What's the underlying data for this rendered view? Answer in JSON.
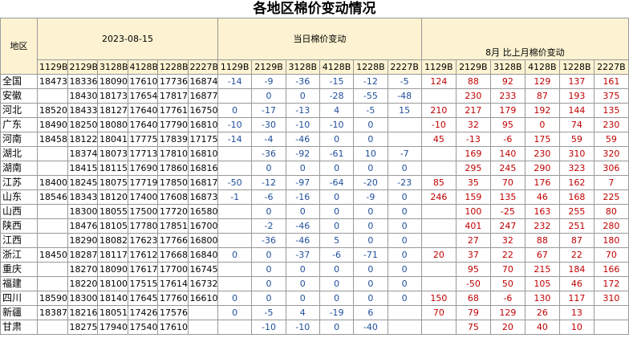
{
  "title": "各地区棉价变动情况",
  "header": {
    "region": "地区",
    "date": "2023-08-15",
    "daily": "当日棉价变动",
    "monthly": "8月 比上月棉价变动",
    "codes": [
      "1129B",
      "2129B",
      "3128B",
      "4128B",
      "1228B",
      "2227B"
    ]
  },
  "rows": [
    [
      "全国",
      [
        18473,
        18336,
        18090,
        17610,
        17736,
        16874
      ],
      [
        -14,
        -9,
        -36,
        -15,
        -12,
        -5
      ],
      [
        124,
        88,
        92,
        129,
        137,
        161
      ]
    ],
    [
      "安徽",
      [
        null,
        18430,
        18173,
        17654,
        17817,
        16877
      ],
      [
        null,
        0,
        0,
        -28,
        -55,
        -48
      ],
      [
        null,
        230,
        233,
        87,
        193,
        375
      ]
    ],
    [
      "河北",
      [
        18520,
        18433,
        18127,
        17640,
        17761,
        16750
      ],
      [
        0,
        -17,
        -13,
        4,
        -5,
        15
      ],
      [
        210,
        217,
        179,
        192,
        144,
        135
      ]
    ],
    [
      "广东",
      [
        18490,
        18250,
        18080,
        17640,
        17790,
        16810
      ],
      [
        -10,
        -30,
        -10,
        -10,
        0,
        null
      ],
      [
        -10,
        32,
        95,
        0,
        74,
        230
      ]
    ],
    [
      "河南",
      [
        18458,
        18122,
        18041,
        17775,
        17839,
        17175
      ],
      [
        -14,
        -4,
        -46,
        0,
        0,
        null
      ],
      [
        45,
        -13,
        -6,
        175,
        59,
        59
      ]
    ],
    [
      "湖北",
      [
        null,
        18374,
        18073,
        17713,
        17810,
        16810
      ],
      [
        null,
        -36,
        -92,
        -61,
        10,
        -7
      ],
      [
        null,
        169,
        140,
        230,
        310,
        320
      ]
    ],
    [
      "湖南",
      [
        null,
        18415,
        18115,
        17690,
        17860,
        16816
      ],
      [
        null,
        0,
        0,
        0,
        0,
        0
      ],
      [
        null,
        295,
        245,
        290,
        323,
        306
      ]
    ],
    [
      "江苏",
      [
        18400,
        18245,
        18075,
        17719,
        17850,
        16817
      ],
      [
        -50,
        -12,
        -97,
        -64,
        -20,
        -23
      ],
      [
        85,
        35,
        70,
        176,
        162,
        7
      ]
    ],
    [
      "山东",
      [
        18546,
        18343,
        18120,
        17400,
        17608,
        16873
      ],
      [
        -1,
        -6,
        -16,
        0,
        -9,
        0
      ],
      [
        246,
        159,
        135,
        46,
        168,
        225
      ]
    ],
    [
      "山西",
      [
        null,
        18300,
        18055,
        17500,
        17720,
        16580
      ],
      [
        null,
        0,
        0,
        0,
        0,
        0
      ],
      [
        null,
        100,
        -25,
        163,
        255,
        80
      ]
    ],
    [
      "陕西",
      [
        null,
        18476,
        18105,
        17780,
        17851,
        16700
      ],
      [
        null,
        -2,
        -46,
        0,
        0,
        0
      ],
      [
        null,
        401,
        247,
        232,
        251,
        280
      ]
    ],
    [
      "江西",
      [
        null,
        18290,
        18082,
        17623,
        17766,
        16800
      ],
      [
        null,
        -36,
        -46,
        5,
        0,
        0
      ],
      [
        null,
        27,
        32,
        88,
        87,
        180
      ]
    ],
    [
      "浙江",
      [
        18450,
        18287,
        18117,
        17612,
        17668,
        16840
      ],
      [
        0,
        0,
        -37,
        -6,
        -71,
        0
      ],
      [
        20,
        37,
        22,
        67,
        22,
        70
      ]
    ],
    [
      "重庆",
      [
        null,
        18270,
        18090,
        17617,
        17700,
        16745
      ],
      [
        null,
        0,
        0,
        0,
        0,
        0
      ],
      [
        null,
        95,
        70,
        215,
        184,
        166
      ]
    ],
    [
      "福建",
      [
        null,
        18220,
        18100,
        17515,
        17614,
        16732
      ],
      [
        null,
        0,
        0,
        0,
        0,
        0
      ],
      [
        null,
        -50,
        50,
        105,
        46,
        172
      ]
    ],
    [
      "四川",
      [
        18590,
        18300,
        18140,
        17645,
        17760,
        16610
      ],
      [
        0,
        0,
        0,
        0,
        0,
        0
      ],
      [
        150,
        68,
        -6,
        130,
        117,
        310
      ]
    ],
    [
      "新疆",
      [
        18387,
        18216,
        18051,
        17426,
        17576,
        null
      ],
      [
        0,
        -5,
        4,
        -19,
        6,
        null
      ],
      [
        70,
        79,
        129,
        26,
        13,
        null
      ]
    ],
    [
      "甘肃",
      [
        null,
        18275,
        17940,
        17540,
        17610,
        null
      ],
      [
        null,
        -10,
        -10,
        0,
        -40,
        null
      ],
      [
        null,
        75,
        20,
        40,
        10,
        null
      ]
    ]
  ]
}
